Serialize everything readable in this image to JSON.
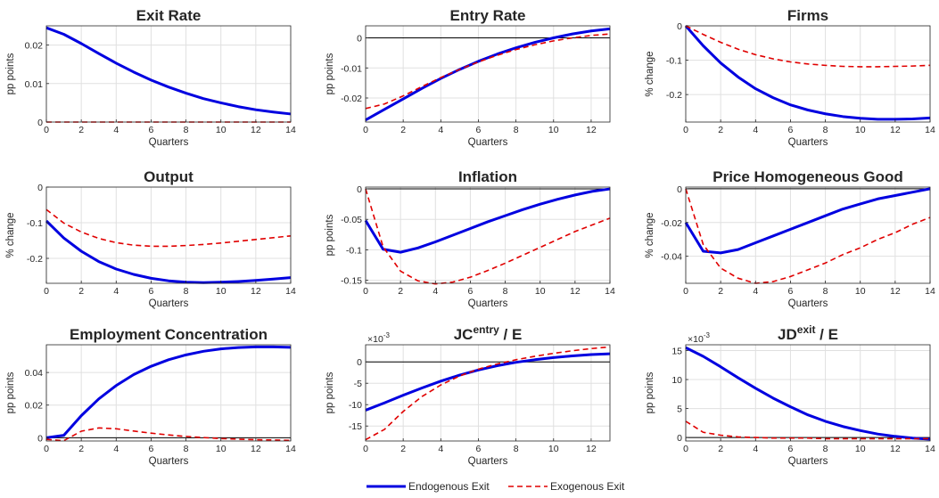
{
  "colors": {
    "endogenous": "#0000e0",
    "exogenous": "#e00000",
    "grid": "#e0e0e0",
    "zero_line": "#000000"
  },
  "legend": {
    "placement": "bottom-center",
    "items": [
      "Endogenous Exit",
      "Exogenous Exit"
    ]
  },
  "chart_data": [
    {
      "type": "line",
      "title": "Exit Rate",
      "xlabel": "Quarters",
      "ylabel": "pp points",
      "xlim": [
        0,
        14
      ],
      "ylim": [
        0,
        0.025
      ],
      "grid": true,
      "xticks": [
        0,
        2,
        4,
        6,
        8,
        10,
        12,
        14
      ],
      "xticklabels": [
        "0",
        "2",
        "4",
        "6",
        "8",
        "10",
        "12",
        "14"
      ],
      "yticks": [
        0,
        0.01,
        0.02
      ],
      "yticklabels": [
        "0",
        "0.01",
        "0.02"
      ],
      "x": [
        0,
        1,
        2,
        3,
        4,
        5,
        6,
        7,
        8,
        9,
        10,
        11,
        12,
        13,
        14
      ],
      "series": [
        {
          "name": "Endogenous Exit",
          "values": [
            0.0245,
            0.0228,
            0.0204,
            0.0178,
            0.0153,
            0.013,
            0.0109,
            0.0091,
            0.0075,
            0.0061,
            0.005,
            0.004,
            0.0032,
            0.0026,
            0.0021
          ]
        },
        {
          "name": "Exogenous Exit",
          "values": [
            0,
            0,
            0,
            0,
            0,
            0,
            0,
            0,
            0,
            0,
            0,
            0,
            0,
            0,
            0
          ]
        }
      ]
    },
    {
      "type": "line",
      "title": "Entry Rate",
      "xlabel": "Quarters",
      "ylabel": "pp points",
      "xlim": [
        0,
        13
      ],
      "ylim": [
        -0.028,
        0.004
      ],
      "grid": true,
      "zero_line": true,
      "xticks": [
        0,
        2,
        4,
        6,
        8,
        10,
        12
      ],
      "xticklabels": [
        "0",
        "2",
        "4",
        "6",
        "8",
        "10",
        "12"
      ],
      "yticks": [
        -0.02,
        -0.01,
        0
      ],
      "yticklabels": [
        "-0.02",
        "-0.01",
        "0"
      ],
      "x": [
        0,
        1,
        2,
        3,
        4,
        5,
        6,
        7,
        8,
        9,
        10,
        11,
        12,
        13
      ],
      "series": [
        {
          "name": "Endogenous Exit",
          "values": [
            -0.0273,
            -0.0238,
            -0.0203,
            -0.0168,
            -0.0135,
            -0.0105,
            -0.0078,
            -0.0054,
            -0.0033,
            -0.0015,
            0.0,
            0.0013,
            0.0023,
            0.003
          ]
        },
        {
          "name": "Exogenous Exit",
          "values": [
            -0.0235,
            -0.022,
            -0.0193,
            -0.0162,
            -0.0132,
            -0.0105,
            -0.008,
            -0.0058,
            -0.0039,
            -0.0023,
            -0.001,
            0.0,
            0.0008,
            0.0013
          ]
        }
      ]
    },
    {
      "type": "line",
      "title": "Firms",
      "xlabel": "Quarters",
      "ylabel": "% change",
      "xlim": [
        0,
        14
      ],
      "ylim": [
        -0.28,
        0
      ],
      "grid": true,
      "xticks": [
        0,
        2,
        4,
        6,
        8,
        10,
        12,
        14
      ],
      "xticklabels": [
        "0",
        "2",
        "4",
        "6",
        "8",
        "10",
        "12",
        "14"
      ],
      "yticks": [
        -0.2,
        -0.1,
        0
      ],
      "yticklabels": [
        "-0.2",
        "-0.1",
        "0"
      ],
      "x": [
        0,
        1,
        2,
        3,
        4,
        5,
        6,
        7,
        8,
        9,
        10,
        11,
        12,
        13,
        14
      ],
      "series": [
        {
          "name": "Endogenous Exit",
          "values": [
            0,
            -0.058,
            -0.108,
            -0.149,
            -0.183,
            -0.209,
            -0.23,
            -0.245,
            -0.256,
            -0.264,
            -0.269,
            -0.272,
            -0.272,
            -0.271,
            -0.268
          ]
        },
        {
          "name": "Exogenous Exit",
          "values": [
            0,
            -0.025,
            -0.048,
            -0.068,
            -0.084,
            -0.096,
            -0.105,
            -0.111,
            -0.115,
            -0.118,
            -0.119,
            -0.119,
            -0.118,
            -0.117,
            -0.115
          ]
        }
      ]
    },
    {
      "type": "line",
      "title": "Output",
      "xlabel": "Quarters",
      "ylabel": "% change",
      "xlim": [
        0,
        14
      ],
      "ylim": [
        -0.27,
        0
      ],
      "grid": true,
      "xticks": [
        0,
        2,
        4,
        6,
        8,
        10,
        12,
        14
      ],
      "xticklabels": [
        "0",
        "2",
        "4",
        "6",
        "8",
        "10",
        "12",
        "14"
      ],
      "yticks": [
        -0.2,
        -0.1,
        0
      ],
      "yticklabels": [
        "-0.2",
        "-0.1",
        "0"
      ],
      "x": [
        0,
        1,
        2,
        3,
        4,
        5,
        6,
        7,
        8,
        9,
        10,
        11,
        12,
        13,
        14
      ],
      "series": [
        {
          "name": "Endogenous Exit",
          "values": [
            -0.095,
            -0.143,
            -0.18,
            -0.209,
            -0.23,
            -0.245,
            -0.256,
            -0.263,
            -0.267,
            -0.268,
            -0.267,
            -0.265,
            -0.262,
            -0.258,
            -0.254
          ]
        },
        {
          "name": "Exogenous Exit",
          "values": [
            -0.063,
            -0.101,
            -0.126,
            -0.144,
            -0.156,
            -0.163,
            -0.166,
            -0.166,
            -0.164,
            -0.161,
            -0.157,
            -0.152,
            -0.147,
            -0.142,
            -0.137
          ]
        }
      ]
    },
    {
      "type": "line",
      "title": "Inflation",
      "xlabel": "Quarters",
      "ylabel": "pp points",
      "xlim": [
        0,
        14
      ],
      "ylim": [
        -0.155,
        0.003
      ],
      "grid": true,
      "zero_line": true,
      "xticks": [
        0,
        2,
        4,
        6,
        8,
        10,
        12,
        14
      ],
      "xticklabels": [
        "0",
        "2",
        "4",
        "6",
        "8",
        "10",
        "12",
        "14"
      ],
      "yticks": [
        -0.15,
        -0.1,
        -0.05,
        0
      ],
      "yticklabels": [
        "-0.15",
        "-0.1",
        "-0.05",
        "0"
      ],
      "x": [
        0,
        1,
        2,
        3,
        4,
        5,
        6,
        7,
        8,
        9,
        10,
        11,
        12,
        13,
        14
      ],
      "series": [
        {
          "name": "Endogenous Exit",
          "values": [
            -0.052,
            -0.099,
            -0.104,
            -0.097,
            -0.087,
            -0.076,
            -0.065,
            -0.054,
            -0.044,
            -0.034,
            -0.025,
            -0.017,
            -0.01,
            -0.004,
            0.0
          ]
        },
        {
          "name": "Exogenous Exit",
          "values": [
            0.0,
            -0.095,
            -0.135,
            -0.151,
            -0.156,
            -0.153,
            -0.145,
            -0.134,
            -0.122,
            -0.109,
            -0.096,
            -0.083,
            -0.07,
            -0.059,
            -0.048
          ]
        }
      ]
    },
    {
      "type": "line",
      "title": "Price Homogeneous Good",
      "xlabel": "Quarters",
      "ylabel": "% change",
      "xlim": [
        0,
        14
      ],
      "ylim": [
        -0.056,
        0.001
      ],
      "grid": true,
      "zero_line": true,
      "xticks": [
        0,
        2,
        4,
        6,
        8,
        10,
        12,
        14
      ],
      "xticklabels": [
        "0",
        "2",
        "4",
        "6",
        "8",
        "10",
        "12",
        "14"
      ],
      "yticks": [
        -0.04,
        -0.02,
        0
      ],
      "yticklabels": [
        "-0.04",
        "-0.02",
        "0"
      ],
      "x": [
        0,
        1,
        2,
        3,
        4,
        5,
        6,
        7,
        8,
        9,
        10,
        11,
        12,
        13,
        14
      ],
      "series": [
        {
          "name": "Endogenous Exit",
          "values": [
            -0.02,
            -0.037,
            -0.038,
            -0.036,
            -0.032,
            -0.028,
            -0.024,
            -0.02,
            -0.016,
            -0.012,
            -0.009,
            -0.006,
            -0.004,
            -0.002,
            0.0
          ]
        },
        {
          "name": "Exogenous Exit",
          "values": [
            0.0,
            -0.033,
            -0.047,
            -0.053,
            -0.056,
            -0.055,
            -0.052,
            -0.048,
            -0.044,
            -0.039,
            -0.035,
            -0.03,
            -0.026,
            -0.021,
            -0.017
          ]
        }
      ]
    },
    {
      "type": "line",
      "title": "Employment Concentration",
      "xlabel": "Quarters",
      "ylabel": "pp points",
      "xlim": [
        0,
        14
      ],
      "ylim": [
        -0.002,
        0.057
      ],
      "grid": true,
      "zero_line": true,
      "xticks": [
        0,
        2,
        4,
        6,
        8,
        10,
        12,
        14
      ],
      "xticklabels": [
        "0",
        "2",
        "4",
        "6",
        "8",
        "10",
        "12",
        "14"
      ],
      "yticks": [
        0,
        0.02,
        0.04
      ],
      "yticklabels": [
        "0",
        "0.02",
        "0.04"
      ],
      "x": [
        0,
        1,
        2,
        3,
        4,
        5,
        6,
        7,
        8,
        9,
        10,
        11,
        12,
        13,
        14
      ],
      "series": [
        {
          "name": "Endogenous Exit",
          "values": [
            0.0,
            0.0015,
            0.0135,
            0.0238,
            0.032,
            0.0387,
            0.0438,
            0.0478,
            0.0508,
            0.053,
            0.0545,
            0.0553,
            0.0557,
            0.0557,
            0.0554
          ]
        },
        {
          "name": "Exogenous Exit",
          "values": [
            -0.001,
            -0.0018,
            0.004,
            0.006,
            0.0055,
            0.0041,
            0.0028,
            0.0017,
            0.0008,
            0.0001,
            -0.0005,
            -0.0009,
            -0.0012,
            -0.0014,
            -0.0016
          ]
        }
      ]
    },
    {
      "type": "line",
      "title": "JC",
      "title_superscript": "entry",
      "title_suffix": " / E",
      "xlabel": "Quarters",
      "ylabel": "pp points",
      "yscale_label": "×10",
      "yscale_exponent": "-3",
      "xlim": [
        0,
        13
      ],
      "ylim": [
        -18.5,
        4
      ],
      "grid": true,
      "zero_line": true,
      "xticks": [
        0,
        2,
        4,
        6,
        8,
        10,
        12
      ],
      "xticklabels": [
        "0",
        "2",
        "4",
        "6",
        "8",
        "10",
        "12"
      ],
      "yticks": [
        -15,
        -10,
        -5,
        0
      ],
      "yticklabels": [
        "-15",
        "-10",
        "-5",
        "0"
      ],
      "x": [
        0,
        1,
        2,
        3,
        4,
        5,
        6,
        7,
        8,
        9,
        10,
        11,
        12,
        13
      ],
      "series": [
        {
          "name": "Endogenous Exit",
          "values": [
            -11.3,
            -9.6,
            -7.8,
            -6.1,
            -4.5,
            -3.1,
            -1.9,
            -0.9,
            -0.1,
            0.5,
            1.0,
            1.4,
            1.7,
            1.9
          ]
        },
        {
          "name": "Exogenous Exit",
          "values": [
            -18.2,
            -15.8,
            -11.6,
            -8.1,
            -5.4,
            -3.3,
            -1.7,
            -0.5,
            0.5,
            1.3,
            2.0,
            2.6,
            3.1,
            3.5
          ]
        }
      ]
    },
    {
      "type": "line",
      "title": "JD",
      "title_superscript": "exit",
      "title_suffix": " / E",
      "xlabel": "Quarters",
      "ylabel": "pp points",
      "yscale_label": "×10",
      "yscale_exponent": "-3",
      "xlim": [
        0,
        14
      ],
      "ylim": [
        -0.6,
        16
      ],
      "grid": true,
      "zero_line": true,
      "xticks": [
        0,
        2,
        4,
        6,
        8,
        10,
        12,
        14
      ],
      "xticklabels": [
        "0",
        "2",
        "4",
        "6",
        "8",
        "10",
        "12",
        "14"
      ],
      "yticks": [
        0,
        5,
        10,
        15
      ],
      "yticklabels": [
        "0",
        "5",
        "10",
        "15"
      ],
      "x": [
        0,
        1,
        2,
        3,
        4,
        5,
        6,
        7,
        8,
        9,
        10,
        11,
        12,
        13,
        14
      ],
      "series": [
        {
          "name": "Endogenous Exit",
          "values": [
            15.5,
            14.0,
            12.2,
            10.3,
            8.5,
            6.8,
            5.3,
            3.9,
            2.8,
            1.9,
            1.2,
            0.6,
            0.2,
            -0.1,
            -0.3
          ]
        },
        {
          "name": "Exogenous Exit",
          "values": [
            2.8,
            0.9,
            0.4,
            0.1,
            0.0,
            -0.1,
            -0.1,
            -0.1,
            -0.2,
            -0.2,
            -0.2,
            -0.2,
            -0.2,
            -0.2,
            -0.2
          ]
        }
      ]
    }
  ]
}
